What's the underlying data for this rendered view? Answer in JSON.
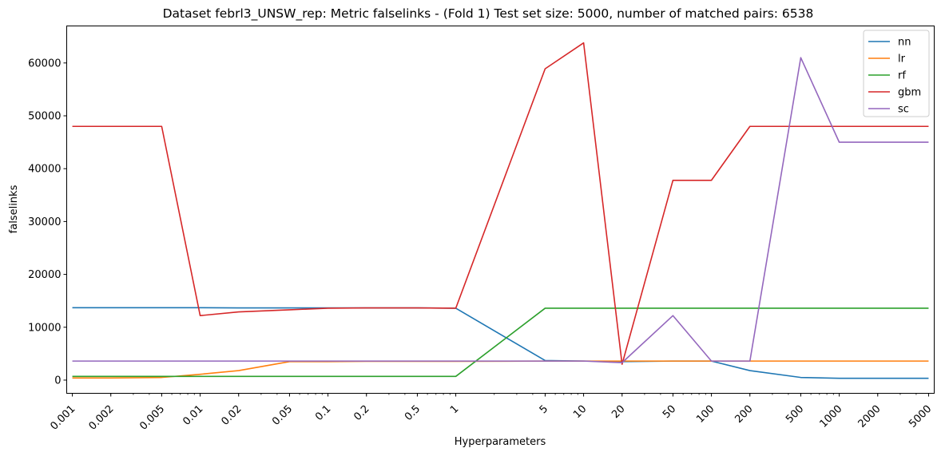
{
  "chart_data": {
    "type": "line",
    "title": "Dataset febrl3_UNSW_rep: Metric falselinks - (Fold 1) Test set size: 5000, number of matched pairs: 6538",
    "xlabel": "Hyperparameters",
    "ylabel": "falselinks",
    "xscale": "log",
    "x": [
      0.001,
      0.002,
      0.005,
      0.01,
      0.02,
      0.05,
      0.1,
      0.2,
      0.5,
      1,
      5,
      10,
      20,
      50,
      100,
      200,
      500,
      1000,
      2000,
      5000
    ],
    "x_tick_labels": [
      "0.001",
      "0.002",
      "0.005",
      "0.01",
      "0.02",
      "0.05",
      "0.1",
      "0.2",
      "0.5",
      "1",
      "5",
      "10",
      "20",
      "50",
      "100",
      "200",
      "500",
      "1000",
      "2000",
      "5000"
    ],
    "ylim": [
      -2500,
      67000
    ],
    "y_ticks": [
      0,
      10000,
      20000,
      30000,
      40000,
      50000,
      60000
    ],
    "y_tick_labels": [
      "0",
      "10000",
      "20000",
      "30000",
      "40000",
      "50000",
      "60000"
    ],
    "legend_position": "top-right",
    "grid": false,
    "series": [
      {
        "name": "nn",
        "color": "#1f77b4",
        "values": [
          13700,
          13700,
          13700,
          13700,
          13650,
          13650,
          13650,
          13650,
          13650,
          13600,
          3700,
          3600,
          3500,
          3600,
          3600,
          1800,
          500,
          350,
          350,
          350
        ]
      },
      {
        "name": "lr",
        "color": "#ff7f0e",
        "values": [
          400,
          400,
          500,
          1100,
          1800,
          3500,
          3500,
          3550,
          3550,
          3550,
          3600,
          3600,
          3600,
          3600,
          3600,
          3600,
          3600,
          3600,
          3600,
          3600
        ]
      },
      {
        "name": "rf",
        "color": "#2ca02c",
        "values": [
          700,
          700,
          700,
          700,
          700,
          700,
          700,
          700,
          700,
          700,
          13600,
          13600,
          13600,
          13600,
          13600,
          13600,
          13600,
          13600,
          13600,
          13600
        ]
      },
      {
        "name": "gbm",
        "color": "#d62728",
        "values": [
          48000,
          48000,
          48000,
          12200,
          12900,
          13300,
          13600,
          13650,
          13650,
          13600,
          58900,
          63800,
          3000,
          37800,
          37800,
          48000,
          48000,
          48000,
          48000,
          48000
        ]
      },
      {
        "name": "sc",
        "color": "#9467bd",
        "values": [
          3600,
          3600,
          3600,
          3600,
          3600,
          3600,
          3600,
          3600,
          3600,
          3600,
          3600,
          3600,
          3300,
          12200,
          3600,
          3600,
          61000,
          45000,
          45000,
          45000
        ]
      }
    ]
  }
}
